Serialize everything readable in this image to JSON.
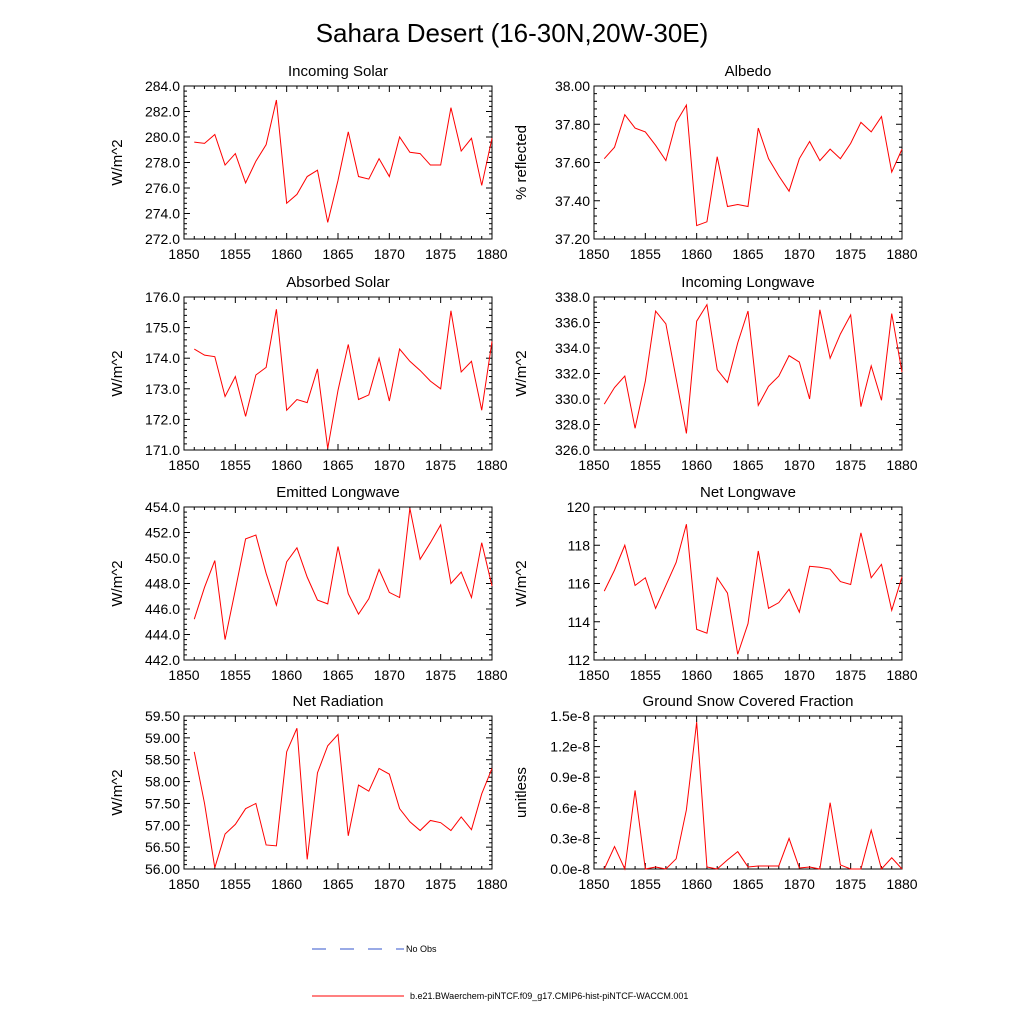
{
  "title": "Sahara Desert (16-30N,20W-30E)",
  "colors": {
    "series": "#ff0000",
    "obs": "#3355cc",
    "axis": "#000000"
  },
  "legend": {
    "obs_label": "No Obs",
    "model_label": "b.e21.BWaerchem-piNTCF.f09_g17.CMIP6-hist-piNTCF-WACCM.001"
  },
  "chart_data": [
    {
      "type": "line",
      "title": "Incoming Solar",
      "xlabel": "",
      "ylabel": "W/m^2",
      "xlim": [
        1850,
        1880
      ],
      "ylim": [
        272,
        284
      ],
      "xticks": [
        1850,
        1855,
        1860,
        1865,
        1870,
        1875,
        1880
      ],
      "yticks": [
        272,
        274,
        276,
        278,
        280,
        282,
        284
      ],
      "ytick_labels": [
        "272.0",
        "274.0",
        "276.0",
        "278.0",
        "280.0",
        "282.0",
        "284.0"
      ],
      "x": [
        1851,
        1852,
        1853,
        1854,
        1855,
        1856,
        1857,
        1858,
        1859,
        1860,
        1861,
        1862,
        1863,
        1864,
        1865,
        1866,
        1867,
        1868,
        1869,
        1870,
        1871,
        1872,
        1873,
        1874,
        1875,
        1876,
        1877,
        1878,
        1879,
        1880
      ],
      "series": [
        {
          "values": [
            279.6,
            279.5,
            280.2,
            277.8,
            278.7,
            276.4,
            278.1,
            279.4,
            282.9,
            274.8,
            275.5,
            276.9,
            277.4,
            273.3,
            276.6,
            280.4,
            276.9,
            276.7,
            278.3,
            276.9,
            280.0,
            278.8,
            278.7,
            277.8,
            277.8,
            282.3,
            278.9,
            279.9,
            276.2,
            279.9
          ]
        }
      ]
    },
    {
      "type": "line",
      "title": "Albedo",
      "xlabel": "",
      "ylabel": "% reflected",
      "xlim": [
        1850,
        1880
      ],
      "ylim": [
        37.2,
        38.0
      ],
      "xticks": [
        1850,
        1855,
        1860,
        1865,
        1870,
        1875,
        1880
      ],
      "yticks": [
        37.2,
        37.4,
        37.6,
        37.8,
        38.0
      ],
      "ytick_labels": [
        "37.20",
        "37.40",
        "37.60",
        "37.80",
        "38.00"
      ],
      "x": [
        1851,
        1852,
        1853,
        1854,
        1855,
        1856,
        1857,
        1858,
        1859,
        1860,
        1861,
        1862,
        1863,
        1864,
        1865,
        1866,
        1867,
        1868,
        1869,
        1870,
        1871,
        1872,
        1873,
        1874,
        1875,
        1876,
        1877,
        1878,
        1879,
        1880
      ],
      "series": [
        {
          "values": [
            37.62,
            37.68,
            37.85,
            37.78,
            37.76,
            37.69,
            37.61,
            37.81,
            37.9,
            37.27,
            37.29,
            37.63,
            37.37,
            37.38,
            37.37,
            37.78,
            37.62,
            37.53,
            37.45,
            37.62,
            37.71,
            37.61,
            37.67,
            37.62,
            37.7,
            37.81,
            37.76,
            37.84,
            37.55,
            37.67
          ]
        }
      ]
    },
    {
      "type": "line",
      "title": "Absorbed Solar",
      "xlabel": "",
      "ylabel": "W/m^2",
      "xlim": [
        1850,
        1880
      ],
      "ylim": [
        171,
        176
      ],
      "xticks": [
        1850,
        1855,
        1860,
        1865,
        1870,
        1875,
        1880
      ],
      "yticks": [
        171,
        172,
        173,
        174,
        175,
        176
      ],
      "ytick_labels": [
        "171.0",
        "172.0",
        "173.0",
        "174.0",
        "175.0",
        "176.0"
      ],
      "x": [
        1851,
        1852,
        1853,
        1854,
        1855,
        1856,
        1857,
        1858,
        1859,
        1860,
        1861,
        1862,
        1863,
        1864,
        1865,
        1866,
        1867,
        1868,
        1869,
        1870,
        1871,
        1872,
        1873,
        1874,
        1875,
        1876,
        1877,
        1878,
        1879,
        1880
      ],
      "series": [
        {
          "values": [
            174.3,
            174.1,
            174.05,
            172.75,
            173.4,
            172.1,
            173.45,
            173.7,
            175.6,
            172.3,
            172.65,
            172.55,
            173.65,
            171.05,
            172.95,
            174.45,
            172.65,
            172.8,
            174.0,
            172.6,
            174.3,
            173.9,
            173.6,
            173.25,
            173.0,
            175.55,
            173.55,
            173.9,
            172.3,
            174.55
          ]
        }
      ]
    },
    {
      "type": "line",
      "title": "Incoming Longwave",
      "xlabel": "",
      "ylabel": "W/m^2",
      "xlim": [
        1850,
        1880
      ],
      "ylim": [
        326,
        338
      ],
      "xticks": [
        1850,
        1855,
        1860,
        1865,
        1870,
        1875,
        1880
      ],
      "yticks": [
        326,
        328,
        330,
        332,
        334,
        336,
        338
      ],
      "ytick_labels": [
        "326.0",
        "328.0",
        "330.0",
        "332.0",
        "334.0",
        "336.0",
        "338.0"
      ],
      "x": [
        1851,
        1852,
        1853,
        1854,
        1855,
        1856,
        1857,
        1858,
        1859,
        1860,
        1861,
        1862,
        1863,
        1864,
        1865,
        1866,
        1867,
        1868,
        1869,
        1870,
        1871,
        1872,
        1873,
        1874,
        1875,
        1876,
        1877,
        1878,
        1879,
        1880
      ],
      "series": [
        {
          "values": [
            329.6,
            330.9,
            331.8,
            327.7,
            331.4,
            336.9,
            335.9,
            331.6,
            327.3,
            336.1,
            337.4,
            332.3,
            331.3,
            334.4,
            336.9,
            329.5,
            331.0,
            331.8,
            333.4,
            332.9,
            330.0,
            337.0,
            333.2,
            335.1,
            336.6,
            329.4,
            332.6,
            329.9,
            336.7,
            332.1
          ]
        }
      ]
    },
    {
      "type": "line",
      "title": "Emitted Longwave",
      "xlabel": "",
      "ylabel": "W/m^2",
      "xlim": [
        1850,
        1880
      ],
      "ylim": [
        442,
        454
      ],
      "xticks": [
        1850,
        1855,
        1860,
        1865,
        1870,
        1875,
        1880
      ],
      "yticks": [
        442,
        444,
        446,
        448,
        450,
        452,
        454
      ],
      "ytick_labels": [
        "442.0",
        "444.0",
        "446.0",
        "448.0",
        "450.0",
        "452.0",
        "454.0"
      ],
      "x": [
        1851,
        1852,
        1853,
        1854,
        1855,
        1856,
        1857,
        1858,
        1859,
        1860,
        1861,
        1862,
        1863,
        1864,
        1865,
        1866,
        1867,
        1868,
        1869,
        1870,
        1871,
        1872,
        1873,
        1874,
        1875,
        1876,
        1877,
        1878,
        1879,
        1880
      ],
      "series": [
        {
          "values": [
            445.2,
            447.7,
            449.8,
            443.6,
            447.5,
            451.5,
            451.8,
            448.8,
            446.3,
            449.7,
            450.8,
            448.5,
            446.7,
            446.4,
            450.9,
            447.2,
            445.6,
            446.8,
            449.1,
            447.3,
            446.9,
            453.9,
            449.9,
            451.2,
            452.6,
            448.0,
            448.9,
            446.9,
            451.2,
            447.8
          ]
        }
      ]
    },
    {
      "type": "line",
      "title": "Net Longwave",
      "xlabel": "",
      "ylabel": "W/m^2",
      "xlim": [
        1850,
        1880
      ],
      "ylim": [
        112,
        120
      ],
      "xticks": [
        1850,
        1855,
        1860,
        1865,
        1870,
        1875,
        1880
      ],
      "yticks": [
        112,
        114,
        116,
        118,
        120
      ],
      "ytick_labels": [
        "112",
        "114",
        "116",
        "118",
        "120"
      ],
      "x": [
        1851,
        1852,
        1853,
        1854,
        1855,
        1856,
        1857,
        1858,
        1859,
        1860,
        1861,
        1862,
        1863,
        1864,
        1865,
        1866,
        1867,
        1868,
        1869,
        1870,
        1871,
        1872,
        1873,
        1874,
        1875,
        1876,
        1877,
        1878,
        1879,
        1880
      ],
      "series": [
        {
          "values": [
            115.6,
            116.7,
            118.0,
            115.9,
            116.3,
            114.7,
            115.9,
            117.1,
            119.1,
            113.6,
            113.4,
            116.3,
            115.5,
            112.3,
            113.9,
            117.7,
            114.7,
            115.0,
            115.7,
            114.5,
            116.9,
            116.85,
            116.75,
            116.1,
            115.95,
            118.65,
            116.3,
            117.0,
            114.6,
            116.35
          ]
        }
      ]
    },
    {
      "type": "line",
      "title": "Net Radiation",
      "xlabel": "",
      "ylabel": "W/m^2",
      "xlim": [
        1850,
        1880
      ],
      "ylim": [
        56.0,
        59.5
      ],
      "xticks": [
        1850,
        1855,
        1860,
        1865,
        1870,
        1875,
        1880
      ],
      "yticks": [
        56.0,
        56.5,
        57.0,
        57.5,
        58.0,
        58.5,
        59.0,
        59.5
      ],
      "ytick_labels": [
        "56.00",
        "56.50",
        "57.00",
        "57.50",
        "58.00",
        "58.50",
        "59.00",
        "59.50"
      ],
      "x": [
        1851,
        1852,
        1853,
        1854,
        1855,
        1856,
        1857,
        1858,
        1859,
        1860,
        1861,
        1862,
        1863,
        1864,
        1865,
        1866,
        1867,
        1868,
        1869,
        1870,
        1871,
        1872,
        1873,
        1874,
        1875,
        1876,
        1877,
        1878,
        1879,
        1880
      ],
      "series": [
        {
          "values": [
            58.68,
            57.5,
            56.03,
            56.8,
            57.02,
            57.38,
            57.5,
            56.55,
            56.53,
            58.68,
            59.22,
            56.22,
            58.2,
            58.82,
            59.08,
            56.76,
            57.92,
            57.78,
            58.3,
            58.17,
            57.38,
            57.08,
            56.88,
            57.11,
            57.06,
            56.88,
            57.19,
            56.9,
            57.72,
            58.3
          ]
        }
      ]
    },
    {
      "type": "line",
      "title": "Ground Snow Covered Fraction",
      "xlabel": "",
      "ylabel": "unitless",
      "xlim": [
        1850,
        1880
      ],
      "ylim": [
        0,
        1.5e-08
      ],
      "xticks": [
        1850,
        1855,
        1860,
        1865,
        1870,
        1875,
        1880
      ],
      "yticks": [
        0,
        3e-09,
        6e-09,
        9e-09,
        1.2e-08,
        1.5e-08
      ],
      "ytick_labels": [
        "0.0e-8",
        "0.3e-8",
        "0.6e-8",
        "0.9e-8",
        "1.2e-8",
        "1.5e-8"
      ],
      "x": [
        1851,
        1852,
        1853,
        1854,
        1855,
        1856,
        1857,
        1858,
        1859,
        1860,
        1861,
        1862,
        1863,
        1864,
        1865,
        1866,
        1867,
        1868,
        1869,
        1870,
        1871,
        1872,
        1873,
        1874,
        1875,
        1876,
        1877,
        1878,
        1879,
        1880
      ],
      "series": [
        {
          "values": [
            0.0,
            2.2e-09,
            0.0,
            7.7e-09,
            0.0,
            2e-10,
            0.0,
            1e-09,
            5.8e-09,
            1.44e-08,
            2e-10,
            0.0,
            9e-10,
            1.7e-09,
            2e-10,
            3e-10,
            3e-10,
            3e-10,
            3e-09,
            1e-10,
            2e-10,
            0.0,
            6.5e-09,
            4e-10,
            0.0,
            0.0,
            3.8e-09,
            0.0,
            1.1e-09,
            0.0
          ]
        }
      ]
    }
  ]
}
